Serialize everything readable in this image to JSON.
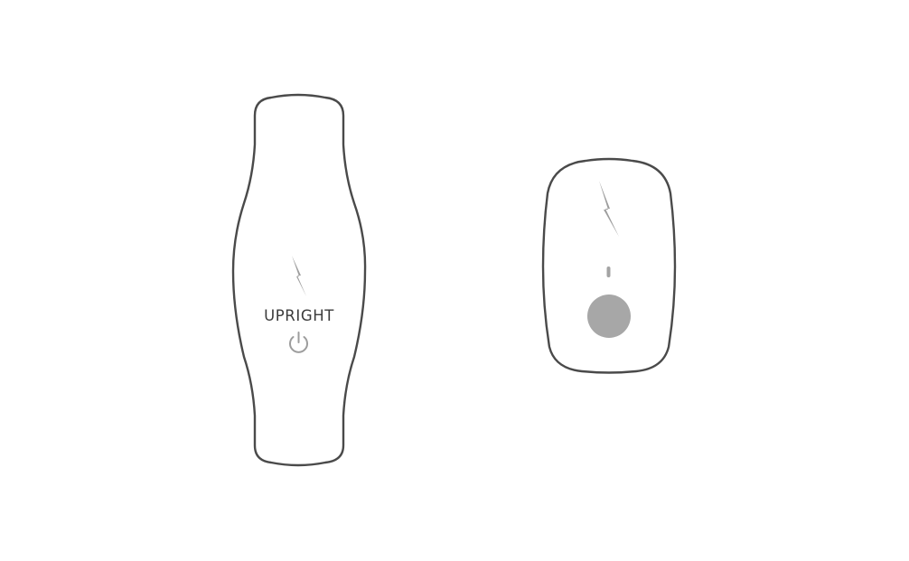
{
  "devices": {
    "trainer": {
      "brand_label": "UPRIGHT",
      "charge_icon": "lightning-bolt-icon",
      "power_icon": "power-icon"
    },
    "charger": {
      "charge_icon": "lightning-bolt-icon",
      "indicator": "status-led",
      "button": "round-button"
    }
  },
  "colors": {
    "outline": "#4a4a4a",
    "icon_gray": "#9d9d9d",
    "button_gray": "#a7a7a7",
    "background": "#ffffff"
  }
}
